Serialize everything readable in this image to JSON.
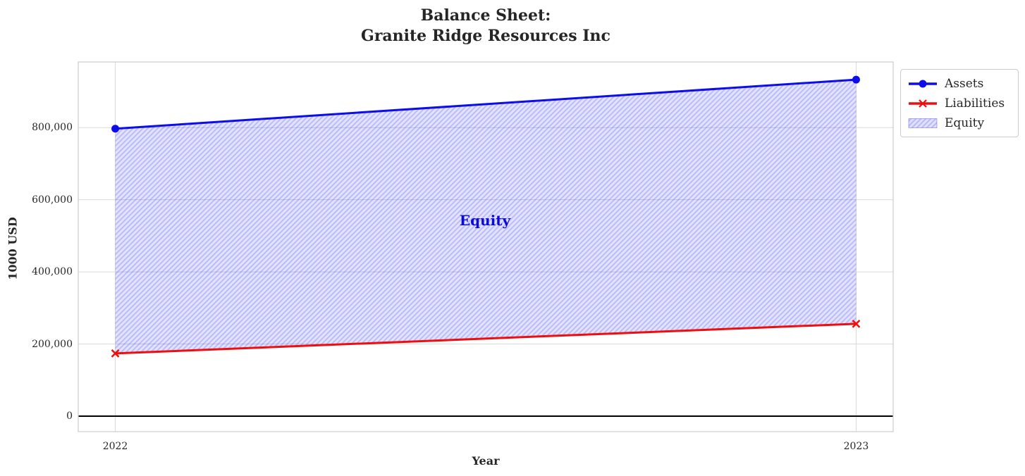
{
  "chart_data": {
    "type": "line",
    "title": "Balance Sheet:\nGranite Ridge Resources Inc",
    "xlabel": "Year",
    "ylabel": "1000 USD",
    "x": [
      2022,
      2023
    ],
    "series": [
      {
        "name": "Assets",
        "values": [
          797000,
          933000
        ],
        "color": "#0d0dec",
        "marker": "circle"
      },
      {
        "name": "Liabilities",
        "values": [
          174000,
          256000
        ],
        "color": "#f00d0d",
        "marker": "x"
      }
    ],
    "area": {
      "name": "Equity",
      "between": [
        "Assets",
        "Liabilities"
      ],
      "values_top": [
        797000,
        933000
      ],
      "values_bottom": [
        174000,
        256000
      ],
      "fill_color": "#0000ff",
      "hatch": "///",
      "label_text": "Equity",
      "label_color": "#0b0bd6"
    },
    "xticks": [
      2022,
      2023
    ],
    "xtick_labels": [
      "2022",
      "2023"
    ],
    "yticks": [
      0,
      200000,
      400000,
      600000,
      800000
    ],
    "ytick_labels": [
      "0",
      "200,000",
      "400,000",
      "600,000",
      "800,000"
    ],
    "xlim": [
      2021.95,
      2023.05
    ],
    "ylim": [
      -43000,
      982000
    ],
    "grid": true,
    "grid_color": "#d9d9d9",
    "frame_color": "#cccccc",
    "zero_line": {
      "y": 0,
      "color": "#000000"
    },
    "legend": {
      "position": "outside-upper-right",
      "entries": [
        "Assets",
        "Liabilities",
        "Equity"
      ]
    }
  }
}
